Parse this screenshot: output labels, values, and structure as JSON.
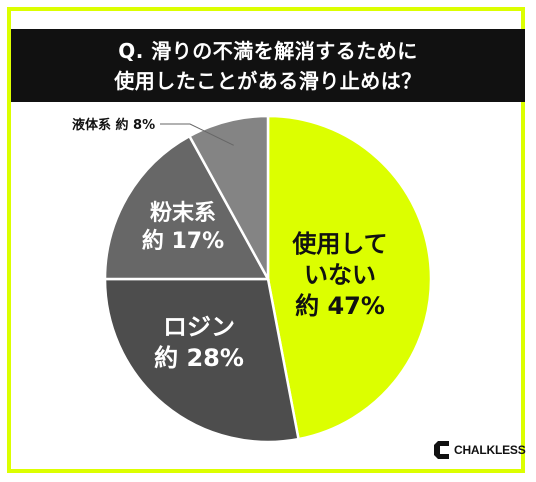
{
  "title": {
    "line1": "Q. 滑りの不満を解消するために",
    "line2": "使用したことがある滑り止めは？"
  },
  "chart_data": {
    "type": "pie",
    "slices": [
      {
        "name": "使用していない",
        "label_lines": [
          "使用して",
          "いない"
        ],
        "value_label": "約 47%",
        "value": 47,
        "color": "#dcff00",
        "text_color": "#111111"
      },
      {
        "name": "ロジン",
        "label_lines": [
          "ロジン"
        ],
        "value_label": "約 28%",
        "value": 28,
        "color": "#4d4d4d",
        "text_color": "#ffffff"
      },
      {
        "name": "粉末系",
        "label_lines": [
          "粉末系"
        ],
        "value_label": "約 17%",
        "value": 17,
        "color": "#676767",
        "text_color": "#ffffff"
      },
      {
        "name": "液体系",
        "label_lines": [],
        "value_label": "約 8%",
        "value": 8,
        "color": "#848484",
        "text_color": "#111111",
        "outside_label": "液体系 約 8%"
      }
    ]
  },
  "logo": {
    "text": "CHALKLESS"
  }
}
